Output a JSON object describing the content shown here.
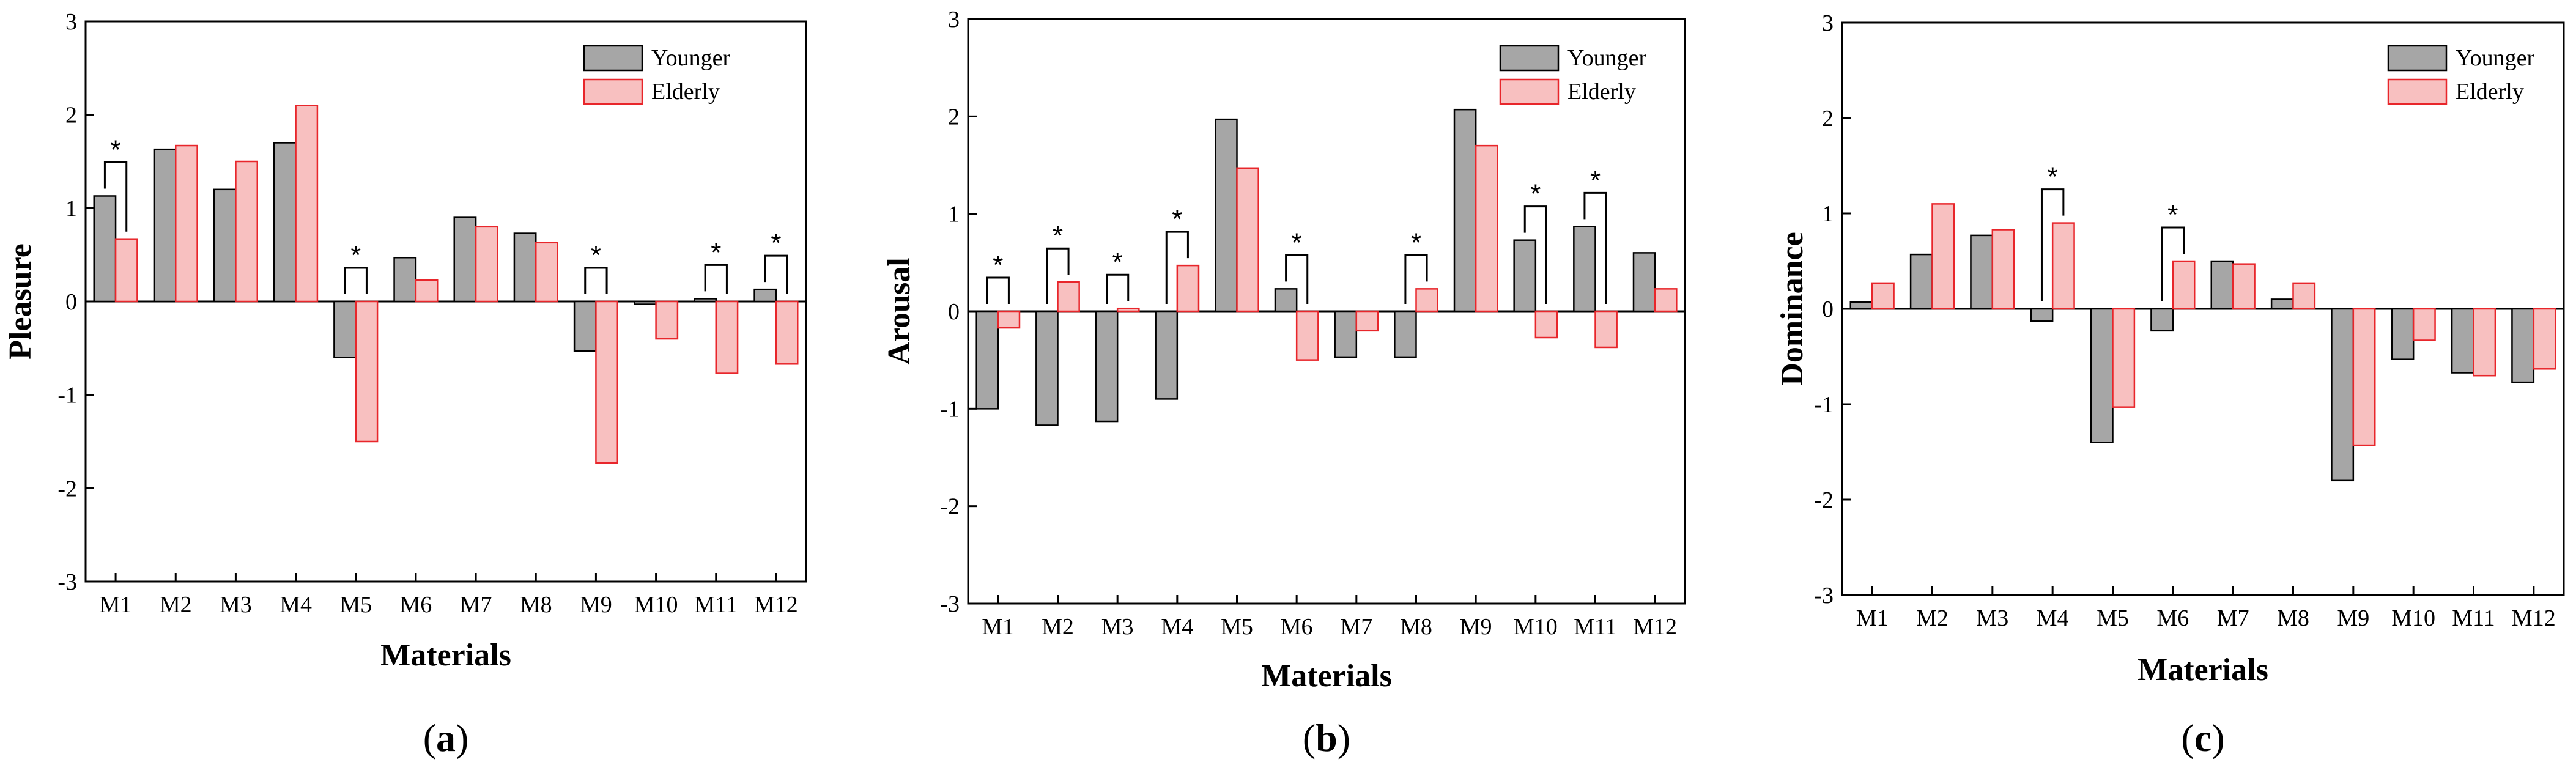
{
  "colors": {
    "younger": "#a6a6a6",
    "elderly": "#f8c0c0",
    "elderly_stroke": "#e8262b",
    "axis": "#000000"
  },
  "chart_data": [
    {
      "type": "bar",
      "panel": "(a)",
      "panel_letter": "a",
      "xlabel": "Materials",
      "ylabel": "Pleasure",
      "ylim": [
        -3,
        3
      ],
      "yticks": [
        "-3",
        "-2",
        "-1",
        "0",
        "1",
        "2",
        "3"
      ],
      "categories": [
        "M1",
        "M2",
        "M3",
        "M4",
        "M5",
        "M6",
        "M7",
        "M8",
        "M9",
        "M10",
        "M11",
        "M12"
      ],
      "series": [
        {
          "name": "Younger",
          "values": [
            1.13,
            1.63,
            1.2,
            1.7,
            -0.6,
            0.47,
            0.9,
            0.73,
            -0.53,
            -0.03,
            0.03,
            0.13
          ]
        },
        {
          "name": "Elderly",
          "values": [
            0.67,
            1.67,
            1.5,
            2.1,
            -1.5,
            0.23,
            0.8,
            0.63,
            -1.73,
            -0.4,
            -0.77,
            -0.67
          ]
        }
      ],
      "significance": [
        {
          "category": "M1",
          "label": "*"
        },
        {
          "category": "M5",
          "label": "*"
        },
        {
          "category": "M9",
          "label": "*"
        },
        {
          "category": "M11",
          "label": "*"
        },
        {
          "category": "M12",
          "label": "*"
        }
      ],
      "legend": "top-right"
    },
    {
      "type": "bar",
      "panel": "(b)",
      "panel_letter": "b",
      "xlabel": "Materials",
      "ylabel": "Arousal",
      "ylim": [
        -3,
        3
      ],
      "yticks": [
        "-3",
        "-2",
        "-1",
        "0",
        "1",
        "2",
        "3"
      ],
      "categories": [
        "M1",
        "M2",
        "M3",
        "M4",
        "M5",
        "M6",
        "M7",
        "M8",
        "M9",
        "M10",
        "M11",
        "M12"
      ],
      "series": [
        {
          "name": "Younger",
          "values": [
            -1.0,
            -1.17,
            -1.13,
            -0.9,
            1.97,
            0.23,
            -0.47,
            -0.47,
            2.07,
            0.73,
            0.87,
            0.6
          ]
        },
        {
          "name": "Elderly",
          "values": [
            -0.17,
            0.3,
            0.03,
            0.47,
            1.47,
            -0.5,
            -0.2,
            0.23,
            1.7,
            -0.27,
            -0.37,
            0.23
          ]
        }
      ],
      "significance": [
        {
          "category": "M1",
          "label": "*"
        },
        {
          "category": "M2",
          "label": "*"
        },
        {
          "category": "M3",
          "label": "*"
        },
        {
          "category": "M4",
          "label": "*"
        },
        {
          "category": "M6",
          "label": "*"
        },
        {
          "category": "M8",
          "label": "*"
        },
        {
          "category": "M10",
          "label": "*"
        },
        {
          "category": "M11",
          "label": "*"
        }
      ],
      "legend": "top-right"
    },
    {
      "type": "bar",
      "panel": "(c)",
      "panel_letter": "c",
      "xlabel": "Materials",
      "ylabel": "Dominance",
      "ylim": [
        -3,
        3
      ],
      "yticks": [
        "-3",
        "-2",
        "-1",
        "0",
        "1",
        "2",
        "3"
      ],
      "categories": [
        "M1",
        "M2",
        "M3",
        "M4",
        "M5",
        "M6",
        "M7",
        "M8",
        "M9",
        "M10",
        "M11",
        "M12"
      ],
      "series": [
        {
          "name": "Younger",
          "values": [
            0.07,
            0.57,
            0.77,
            -0.13,
            -1.4,
            -0.23,
            0.5,
            0.1,
            -1.8,
            -0.53,
            -0.67,
            -0.77
          ]
        },
        {
          "name": "Elderly",
          "values": [
            0.27,
            1.1,
            0.83,
            0.9,
            -1.03,
            0.5,
            0.47,
            0.27,
            -1.43,
            -0.33,
            -0.7,
            -0.63
          ]
        }
      ],
      "significance": [
        {
          "category": "M4",
          "label": "*"
        },
        {
          "category": "M6",
          "label": "*"
        }
      ],
      "legend": "top-right"
    }
  ]
}
